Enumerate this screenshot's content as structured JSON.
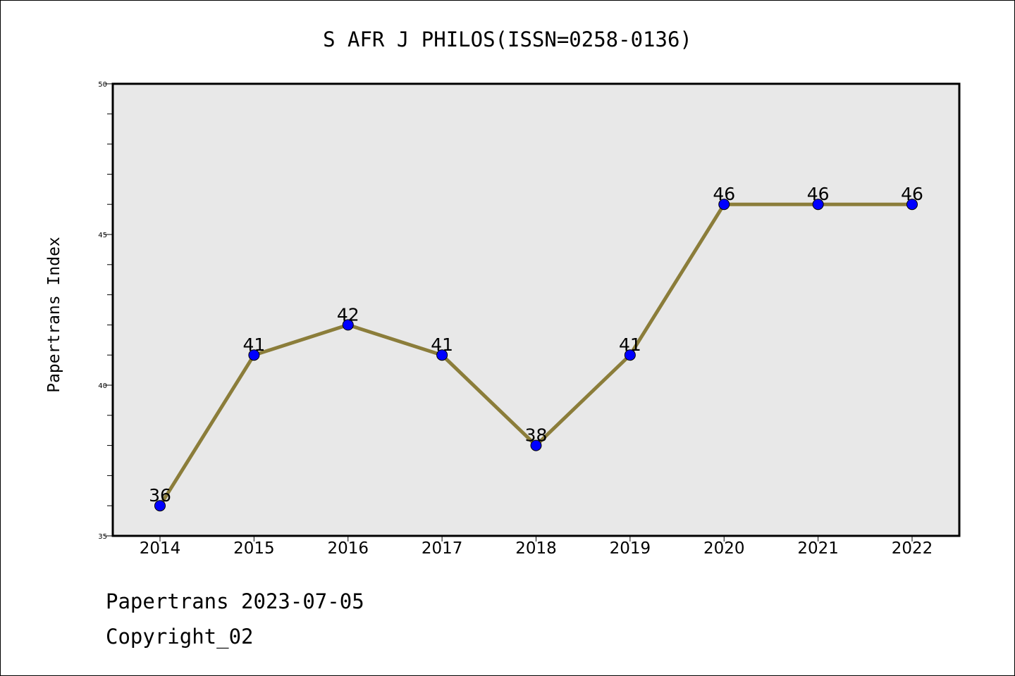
{
  "chart_data": {
    "type": "line",
    "title": "S AFR J PHILOS(ISSN=0258-0136)",
    "xlabel": "",
    "ylabel": "Papertrans Index",
    "categories": [
      "2014",
      "2015",
      "2016",
      "2017",
      "2018",
      "2019",
      "2020",
      "2021",
      "2022"
    ],
    "series": [
      {
        "values": [
          36,
          41,
          42,
          41,
          38,
          41,
          46,
          46,
          46
        ]
      }
    ],
    "ylim": [
      35,
      50
    ],
    "yticks": [
      "35",
      "40",
      "45",
      "50"
    ],
    "grid": false,
    "line_color": "#8b7d3a",
    "marker_color": "#0000ff",
    "plot_background": "#e8e8e8"
  },
  "footer": {
    "line1": "Papertrans 2023-07-05",
    "line2": "Copyright_02"
  }
}
